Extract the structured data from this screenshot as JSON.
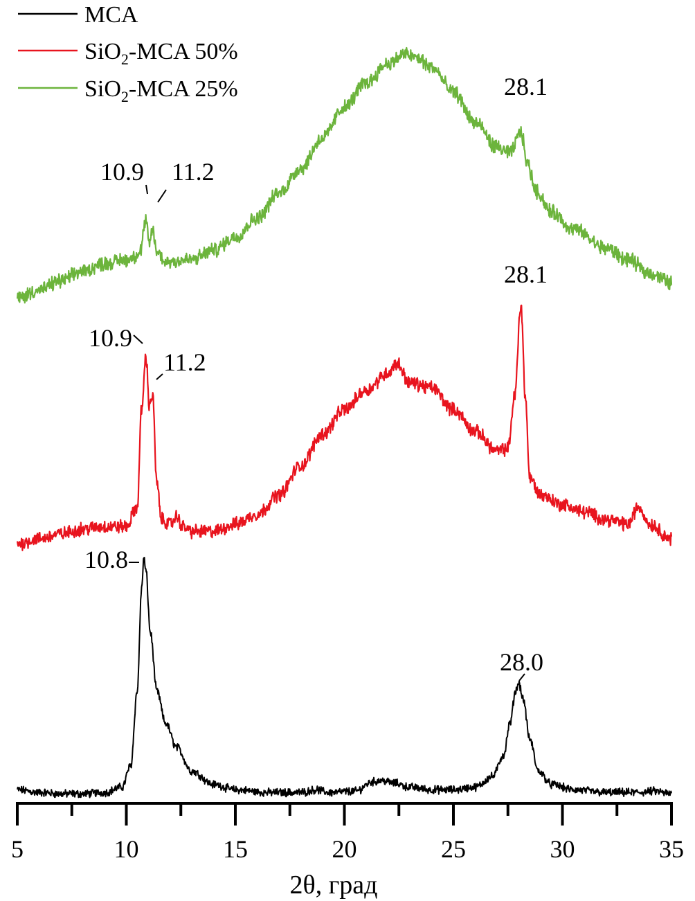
{
  "chart_data": {
    "type": "line",
    "xlabel": "2θ, град",
    "ylabel": "",
    "xlim": [
      5,
      35
    ],
    "x_ticks": [
      "5",
      "10",
      "15",
      "20",
      "25",
      "30",
      "35"
    ],
    "grid": false,
    "legend_placement": "top-left",
    "legend": [
      {
        "name": "MCA",
        "color": "#000000"
      },
      {
        "name": "SiO2-MCA 50%",
        "prefix": "SiO",
        "sub": "2",
        "suffix": "-MCA 50%",
        "color": "#e8141e"
      },
      {
        "name": "SiO2-MCA 25%",
        "prefix": "SiO",
        "sub": "2",
        "suffix": "-MCA 25%",
        "color": "#6cb43c"
      }
    ],
    "series": [
      {
        "name": "MCA",
        "color": "#000000",
        "noise": 1.2,
        "x": [
          5,
          6,
          7,
          8,
          9,
          9.8,
          10.2,
          10.5,
          10.7,
          10.8,
          10.9,
          11.1,
          11.4,
          11.8,
          12.3,
          13,
          14,
          15,
          16.5,
          18,
          18.7,
          19.3,
          20.5,
          21.3,
          21.7,
          22.3,
          23,
          24,
          25,
          26,
          26.8,
          27.3,
          27.6,
          27.85,
          28.0,
          28.2,
          28.5,
          28.9,
          29.5,
          30.5,
          32,
          33.5,
          34.2,
          35
        ],
        "y": [
          3,
          2,
          1.5,
          1.5,
          2,
          4,
          12,
          40,
          78,
          90,
          85,
          62,
          40,
          28,
          19,
          10,
          5,
          3,
          2,
          2,
          3,
          2,
          2.5,
          6,
          6.5,
          5.5,
          4,
          3,
          3,
          4,
          8,
          16,
          28,
          40,
          43,
          37,
          22,
          10,
          5,
          3,
          2,
          2,
          2.5,
          1.5
        ]
      },
      {
        "name": "SiO2-MCA 50%",
        "color": "#e8141e",
        "noise": 2.2,
        "x": [
          5,
          6,
          7,
          8,
          9,
          10,
          10.5,
          10.7,
          10.9,
          11.05,
          11.2,
          11.4,
          11.6,
          12,
          12.3,
          12.6,
          13,
          14,
          15,
          16,
          17,
          18,
          19,
          20,
          21,
          22,
          22.4,
          23,
          24,
          25,
          26,
          27,
          27.5,
          27.8,
          28.1,
          28.3,
          28.5,
          29,
          30,
          31,
          32,
          33,
          33.5,
          34,
          35
        ],
        "y": [
          0,
          2,
          4,
          6,
          7,
          7,
          15,
          55,
          77,
          57,
          61,
          25,
          10,
          8,
          11,
          7,
          5,
          5,
          8,
          12,
          20,
          32,
          45,
          55,
          63,
          70,
          74,
          66,
          64,
          55,
          46,
          38,
          39,
          60,
          98,
          60,
          27,
          20,
          16,
          13,
          10,
          8,
          15,
          8,
          2
        ]
      },
      {
        "name": "SiO2-MCA 25%",
        "color": "#6cb43c",
        "noise": 3.0,
        "x": [
          5,
          6,
          7,
          8,
          9,
          10,
          10.6,
          10.9,
          11.05,
          11.2,
          11.4,
          11.8,
          13,
          14,
          15,
          16,
          17,
          18,
          19,
          20,
          21,
          22,
          22.8,
          23.3,
          24,
          25,
          26,
          27,
          27.6,
          28.1,
          28.4,
          28.8,
          29.5,
          30.5,
          32,
          33,
          34,
          35
        ],
        "y": [
          0,
          4,
          9,
          14,
          18,
          20,
          23,
          40,
          28,
          36,
          24,
          19,
          20,
          25,
          32,
          42,
          55,
          68,
          84,
          100,
          113,
          123,
          128,
          126,
          121,
          108,
          92,
          79,
          76,
          87,
          70,
          56,
          45,
          36,
          26,
          20,
          13,
          8
        ]
      }
    ],
    "annotations": [
      {
        "text": "10.8",
        "series": 0,
        "x": 10.8
      },
      {
        "text": "28.0",
        "series": 0,
        "x": 28.0
      },
      {
        "text": "10.9",
        "series": 1,
        "x": 10.9
      },
      {
        "text": "11.2",
        "series": 1,
        "x": 11.2
      },
      {
        "text": "28.1",
        "series": 1,
        "x": 28.1
      },
      {
        "text": "10.9",
        "series": 2,
        "x": 10.9
      },
      {
        "text": "11.2",
        "series": 2,
        "x": 11.2
      },
      {
        "text": "28.1",
        "series": 2,
        "x": 28.1
      }
    ]
  }
}
